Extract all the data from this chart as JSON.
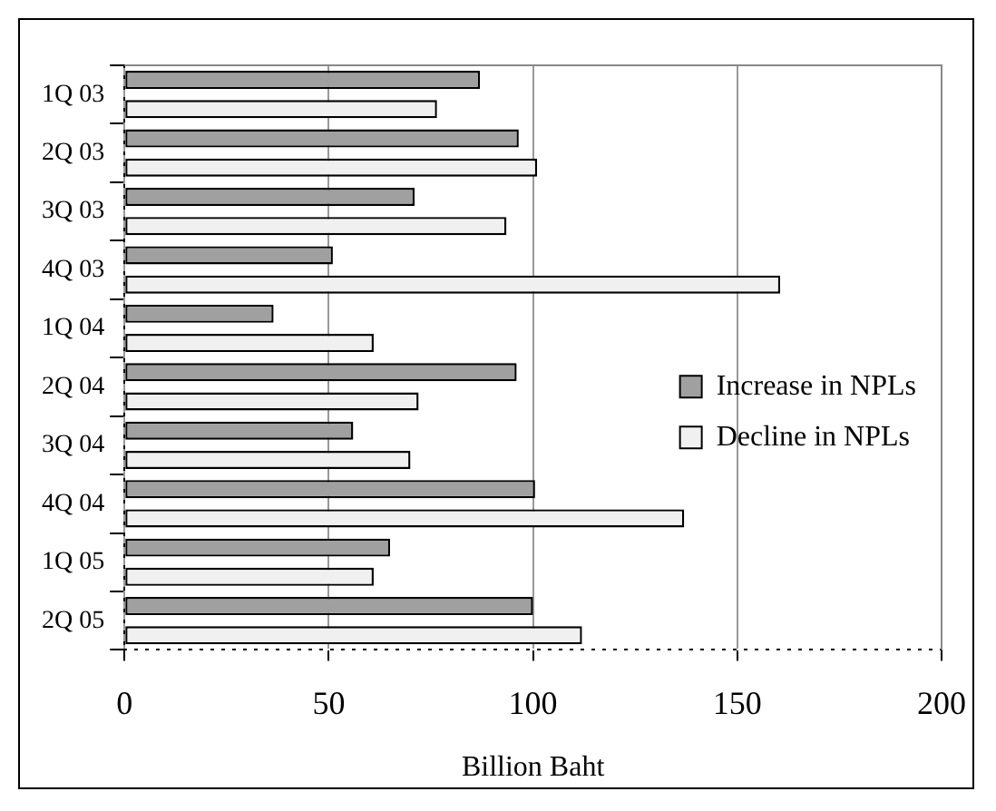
{
  "chart_data": {
    "type": "bar",
    "orientation": "horizontal",
    "xlabel": "Billion Baht",
    "categories": [
      "1Q 03",
      "2Q 03",
      "3Q 03",
      "4Q 03",
      "1Q 04",
      "2Q 04",
      "3Q 04",
      "4Q 04",
      "1Q 05",
      "2Q 05"
    ],
    "series": [
      {
        "name": "Increase in NPLs",
        "color": "#a0a0a0",
        "values": [
          87,
          96.5,
          71,
          51,
          36.5,
          96,
          56,
          100.5,
          65,
          100
        ]
      },
      {
        "name": "Decline in NPLs",
        "color": "#f0f0f0",
        "values": [
          76.5,
          101,
          93.5,
          160.5,
          61,
          72,
          70,
          137,
          61,
          112
        ]
      }
    ],
    "xlim": [
      0,
      200
    ],
    "xticks": [
      0,
      50,
      100,
      150,
      200
    ],
    "grid": "x",
    "legend": "right"
  }
}
